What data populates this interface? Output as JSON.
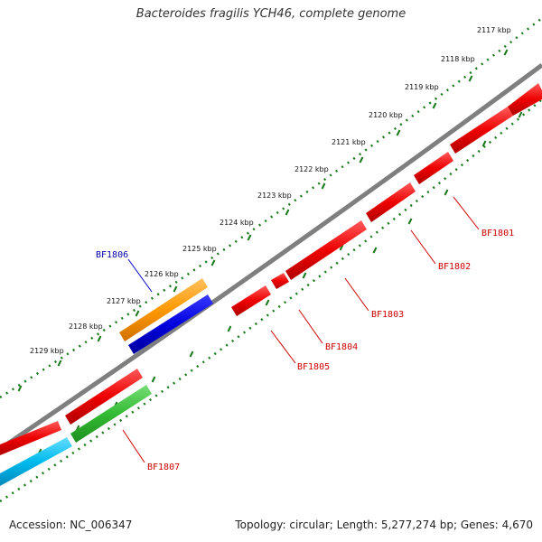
{
  "header": {
    "title": "Bacteroides fragilis YCH46, complete genome"
  },
  "footer": {
    "accession": "Accession: NC_006347",
    "summary": "Topology: circular; Length: 5,277,274 bp; Genes: 4,670"
  },
  "scale": {
    "kbp_labels": [
      "2117 kbp",
      "2118 kbp",
      "2119 kbp",
      "2120 kbp",
      "2121 kbp",
      "2122 kbp",
      "2123 kbp",
      "2124 kbp",
      "2125 kbp",
      "2126 kbp",
      "2127 kbp",
      "2128 kbp",
      "2129 kbp"
    ]
  },
  "genes": [
    {
      "name": "BF1801",
      "color": "#cc0000"
    },
    {
      "name": "BF1802",
      "color": "#cc0000"
    },
    {
      "name": "BF1803",
      "color": "#cc0000"
    },
    {
      "name": "BF1804",
      "color": "#cc0000"
    },
    {
      "name": "BF1805",
      "color": "#cc0000"
    },
    {
      "name": "BF1806",
      "color": "#0000aa"
    },
    {
      "name": "BF1807",
      "color": "#cc0000"
    }
  ],
  "colors": {
    "backbone": "#7f7f7f",
    "tick": "#1a7a1a",
    "gene_red": "#ee0000",
    "gene_blue": "#0000dd",
    "gene_orange": "#ff9900",
    "gene_green": "#33bb33",
    "gene_cyan": "#00bbee"
  }
}
